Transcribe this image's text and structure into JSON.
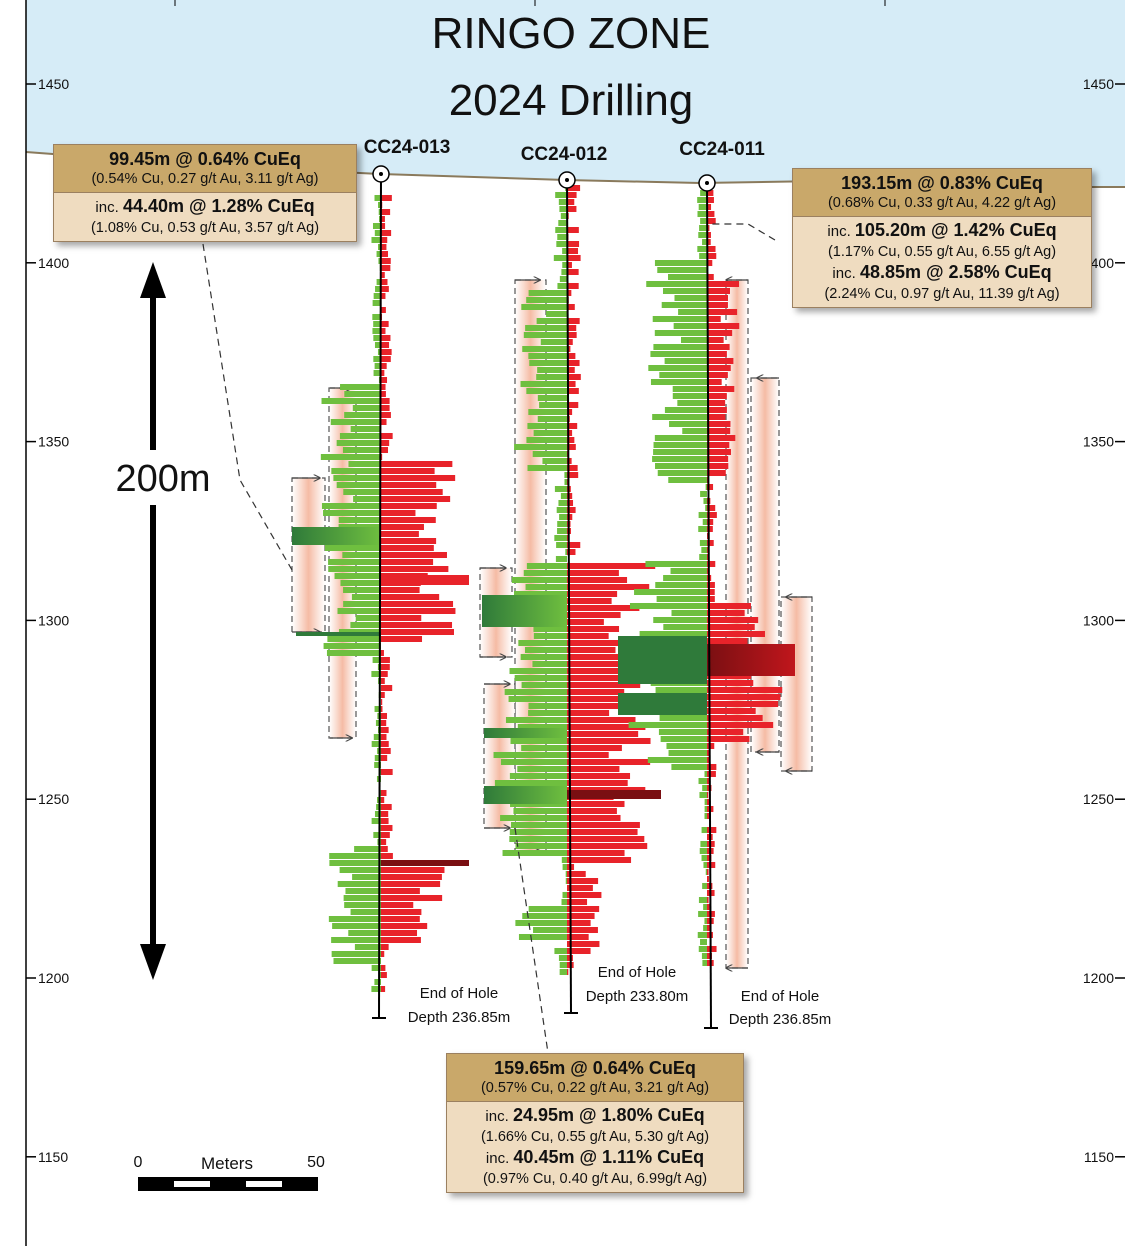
{
  "title": {
    "line1": "RINGO ZONE",
    "line2": "2024 Drilling"
  },
  "elevation_labels": [
    "1450",
    "1400",
    "1350",
    "1300",
    "1250",
    "1200",
    "1150"
  ],
  "holes": [
    {
      "id": "CC24-013",
      "end_label": "End of Hole",
      "depth_label": "Depth 236.85m"
    },
    {
      "id": "CC24-012",
      "end_label": "End of Hole",
      "depth_label": "Depth 233.80m"
    },
    {
      "id": "CC24-011",
      "end_label": "End of Hole",
      "depth_label": "Depth 236.85m"
    }
  ],
  "intercepts": {
    "cc24_013": {
      "main": "99.45m @  0.64% CuEq",
      "main_detail": "(0.54% Cu, 0.27 g/t Au, 3.11 g/t Ag)",
      "inc1_prefix": "inc.",
      "inc1": "44.40m @ 1.28% CuEq",
      "inc1_detail": "(1.08% Cu, 0.53 g/t Au, 3.57 g/t Ag)"
    },
    "cc24_011": {
      "main": "193.15m @ 0.83% CuEq",
      "main_detail": "(0.68% Cu, 0.33 g/t Au, 4.22 g/t Ag)",
      "inc1_prefix": "inc.",
      "inc1": "105.20m @ 1.42% CuEq",
      "inc1_detail": "(1.17% Cu, 0.55 g/t Au, 6.55 g/t Ag)",
      "inc2_prefix": "inc.",
      "inc2": "48.85m @ 2.58% CuEq",
      "inc2_detail": "(2.24% Cu, 0.97 g/t Au, 11.39 g/t Ag)"
    },
    "cc24_012": {
      "main": "159.65m @  0.64% CuEq",
      "main_detail": "(0.57% Cu, 0.22 g/t Au, 3.21 g/t Ag)",
      "inc1_prefix": "inc.",
      "inc1": "24.95m @ 1.80% CuEq",
      "inc1_detail": "(1.66% Cu, 0.55 g/t Au, 5.30 g/t Ag)",
      "inc2_prefix": "inc.",
      "inc2": "40.45m @ 1.11% CuEq",
      "inc2_detail": "(0.97% Cu, 0.40 g/t Au, 6.99g/t Ag)"
    }
  },
  "vertical_scale_label": "200m",
  "scale_bar": {
    "start": "0",
    "unit": "Meters",
    "end": "50"
  },
  "colors": {
    "sky": "#d6ecf7",
    "ground_line": "#8a7a5c",
    "cu_green": "#6fbf3f",
    "cu_green_dark": "#2f7a3a",
    "grade_red": "#e8232a",
    "grade_red_dark": "#7a0f12",
    "envelope": "#f7c9b5",
    "callout_head": "#c9a86a",
    "callout_body": "#efdcc0"
  }
}
